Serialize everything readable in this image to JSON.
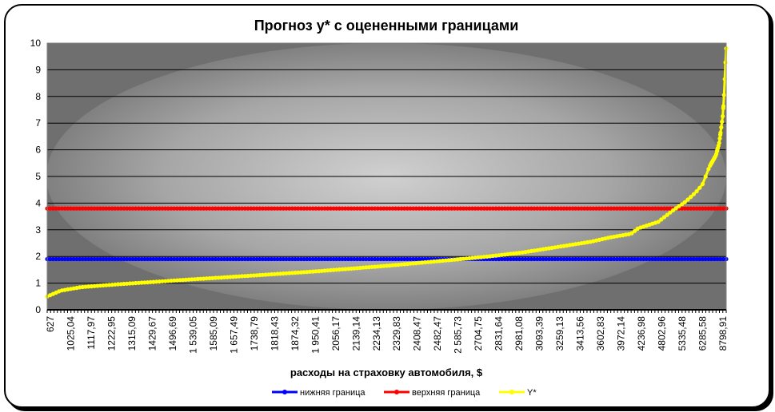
{
  "chart_data": {
    "type": "line",
    "title": "Прогноз y* с оцененными границами",
    "xlabel": "расходы на страховку автомобиля, $",
    "ylabel": "",
    "ylim": [
      0,
      10
    ],
    "yticks": [
      "0",
      "1",
      "2",
      "3",
      "4",
      "5",
      "6",
      "7",
      "8",
      "9",
      "10"
    ],
    "xtick_labels": [
      "627",
      "1025,04",
      "1117,97",
      "1222,95",
      "1315,09",
      "1429,67",
      "1496,69",
      "1 539,05",
      "1585,09",
      "1 657,49",
      "1738,79",
      "1818,43",
      "1874,32",
      "1 950,41",
      "2056,17",
      "2139,14",
      "2234,13",
      "2329,83",
      "2408,47",
      "2482,47",
      "2 585,73",
      "2704,75",
      "2831,64",
      "2981,08",
      "3093,39",
      "3259,13",
      "3413,56",
      "3602,83",
      "3972,14",
      "4236,98",
      "4802,96",
      "5335,48",
      "6285,58",
      "8798,91"
    ],
    "grid": true,
    "legend_position": "bottom",
    "series": [
      {
        "name": "нижняя граница",
        "color": "#0000ff",
        "constant": 1.9
      },
      {
        "name": "верхняя граница",
        "color": "#ff0000",
        "constant": 3.8
      },
      {
        "name": "Y*",
        "color": "#ffff00",
        "curve": [
          [
            0,
            0.5
          ],
          [
            0.02,
            0.72
          ],
          [
            0.05,
            0.85
          ],
          [
            0.1,
            0.95
          ],
          [
            0.2,
            1.12
          ],
          [
            0.3,
            1.28
          ],
          [
            0.4,
            1.45
          ],
          [
            0.5,
            1.65
          ],
          [
            0.6,
            1.88
          ],
          [
            0.65,
            2.0
          ],
          [
            0.7,
            2.15
          ],
          [
            0.75,
            2.35
          ],
          [
            0.8,
            2.55
          ],
          [
            0.83,
            2.72
          ],
          [
            0.86,
            2.85
          ],
          [
            0.87,
            3.05
          ],
          [
            0.9,
            3.3
          ],
          [
            0.92,
            3.7
          ],
          [
            0.94,
            4.05
          ],
          [
            0.955,
            4.4
          ],
          [
            0.965,
            4.7
          ],
          [
            0.975,
            5.35
          ],
          [
            0.985,
            5.8
          ],
          [
            0.99,
            6.3
          ],
          [
            0.993,
            6.9
          ],
          [
            0.995,
            7.3
          ],
          [
            0.997,
            8.1
          ],
          [
            0.999,
            9.3
          ],
          [
            1,
            9.8
          ]
        ]
      }
    ]
  }
}
